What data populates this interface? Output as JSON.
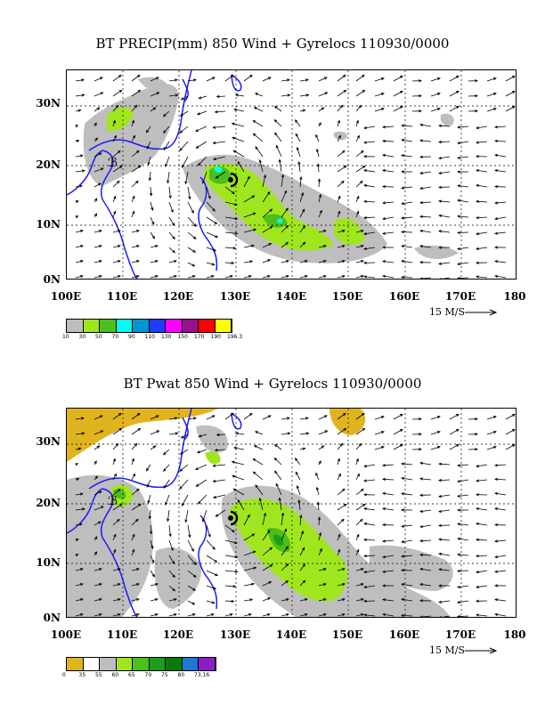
{
  "panels": [
    {
      "title": "BT PRECIP(mm) 850 Wind + Gyrelocs 110930/0000",
      "lat_labels": [
        "30N",
        "20N",
        "10N",
        "0N"
      ],
      "lon_labels": [
        "100E",
        "110E",
        "120E",
        "130E",
        "140E",
        "150E",
        "160E",
        "170E",
        "180"
      ],
      "scale_label": "15 M/S",
      "legend_colors": [
        "#bebebe",
        "#a0e61e",
        "#4cbf1a",
        "#00fff0",
        "#0096d2",
        "#1e3cff",
        "#ff00ff",
        "#9a0f8c",
        "#ff0000",
        "#ffff00"
      ],
      "legend_values": [
        "10",
        "30",
        "50",
        "70",
        "90",
        "110",
        "130",
        "150",
        "170",
        "190",
        "196.3"
      ]
    },
    {
      "title": "BT Pwat 850 Wind + Gyrelocs 110930/0000",
      "lat_labels": [
        "30N",
        "20N",
        "10N",
        "0N"
      ],
      "lon_labels": [
        "100E",
        "110E",
        "120E",
        "130E",
        "140E",
        "150E",
        "160E",
        "170E",
        "180"
      ],
      "scale_label": "15 M/S",
      "legend_colors": [
        "#e0b41e",
        "#ffffff",
        "#bebebe",
        "#a0e61e",
        "#4cbf1a",
        "#1e9e1a",
        "#0a7a0a",
        "#1e78d2",
        "#8c1ec8"
      ],
      "legend_values": [
        "0",
        "35",
        "55",
        "60",
        "65",
        "70",
        "75",
        "80",
        "73.16"
      ]
    }
  ]
}
